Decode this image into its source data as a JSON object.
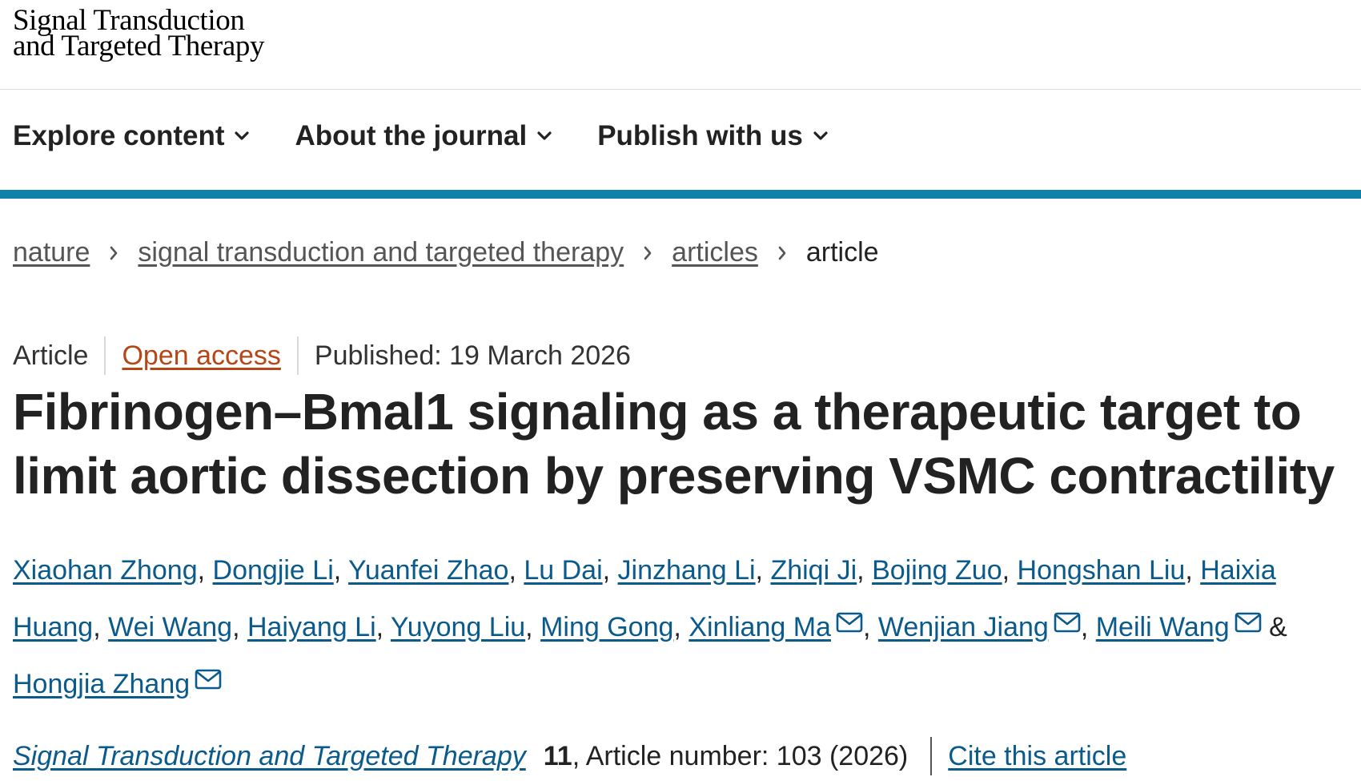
{
  "header": {
    "logo_line1": "Signal Transduction",
    "logo_line2": "and Targeted Therapy"
  },
  "nav": {
    "items": [
      {
        "label": "Explore content",
        "icon": "chevron-down-icon"
      },
      {
        "label": "About the journal",
        "icon": "chevron-down-icon"
      },
      {
        "label": "Publish with us",
        "icon": "chevron-down-icon"
      }
    ]
  },
  "breadcrumb": {
    "items": [
      "nature",
      "signal transduction and targeted therapy",
      "articles"
    ],
    "current": "article"
  },
  "meta": {
    "type": "Article",
    "access": "Open access",
    "published": "Published: 19 March 2026"
  },
  "title": "Fibrinogen–Bmal1 signaling as a therapeutic target to limit aortic dissection by preserving VSMC contractility",
  "authors": [
    {
      "name": "Xiaohan Zhong"
    },
    {
      "name": "Dongjie Li"
    },
    {
      "name": "Yuanfei Zhao"
    },
    {
      "name": "Lu Dai"
    },
    {
      "name": "Jinzhang Li"
    },
    {
      "name": "Zhiqi Ji"
    },
    {
      "name": "Bojing Zuo"
    },
    {
      "name": "Hongshan Liu"
    },
    {
      "name": "Haixia Huang"
    },
    {
      "name": "Wei Wang"
    },
    {
      "name": "Haiyang Li"
    },
    {
      "name": "Yuyong Liu"
    },
    {
      "name": "Ming Gong"
    },
    {
      "name": "Xinliang Ma",
      "icon": "mail-icon"
    },
    {
      "name": "Wenjian Jiang",
      "icon": "mail-icon"
    },
    {
      "name": "Meili Wang",
      "icon": "mail-icon"
    },
    {
      "name": "Hongjia Zhang",
      "icon": "mail-icon"
    }
  ],
  "citation": {
    "journal": "Signal Transduction and Targeted Therapy",
    "volume": "11",
    "article_number": ", Article number: 103 (2026)",
    "cite_label": "Cite this article"
  },
  "colors": {
    "accent_bar": "#0f80a8",
    "link": "#0a5a8c",
    "open_access": "#b74616"
  }
}
